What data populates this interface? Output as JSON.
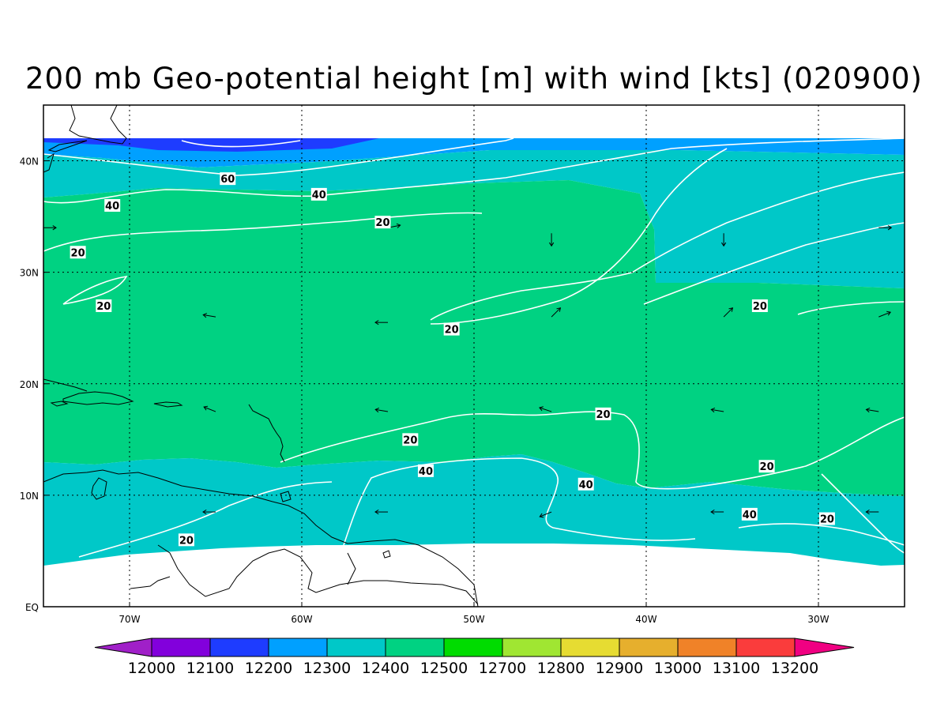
{
  "title": "200 mb Geo-potential height [m] with wind [kts] (020900)",
  "map": {
    "lon_range": [
      -75,
      -25
    ],
    "lat_range": [
      0,
      45
    ],
    "lon_ticks": [
      {
        "lon": -70,
        "label": "70W"
      },
      {
        "lon": -60,
        "label": "60W"
      },
      {
        "lon": -50,
        "label": "50W"
      },
      {
        "lon": -40,
        "label": "40W"
      },
      {
        "lon": -30,
        "label": "30W"
      }
    ],
    "lat_ticks": [
      {
        "lat": 0,
        "label": "EQ"
      },
      {
        "lat": 10,
        "label": "10N"
      },
      {
        "lat": 20,
        "label": "20N"
      },
      {
        "lat": 30,
        "label": "30N"
      },
      {
        "lat": 40,
        "label": "40N"
      }
    ],
    "grid": "dotted"
  },
  "colorbar": {
    "values": [
      "12000",
      "12100",
      "12200",
      "12300",
      "12400",
      "12500",
      "12700",
      "12800",
      "12900",
      "13000",
      "13100",
      "13200"
    ],
    "colors": [
      "#a020c8",
      "#8200dc",
      "#1e3cff",
      "#00a0ff",
      "#00c8c8",
      "#00d282",
      "#00dc00",
      "#a0e632",
      "#e6dc32",
      "#e6af2d",
      "#f08228",
      "#fa3c3c",
      "#f00082"
    ]
  },
  "wind_contour_labels": [
    {
      "text": "60",
      "lon": -64.3,
      "lat": 38.4
    },
    {
      "text": "40",
      "lon": -59.0,
      "lat": 37.0
    },
    {
      "text": "40",
      "lon": -71.0,
      "lat": 36.0
    },
    {
      "text": "20",
      "lon": -55.3,
      "lat": 34.5
    },
    {
      "text": "20",
      "lon": -73.0,
      "lat": 31.8
    },
    {
      "text": "20",
      "lon": -71.5,
      "lat": 27.0
    },
    {
      "text": "20",
      "lon": -51.3,
      "lat": 24.9
    },
    {
      "text": "20",
      "lon": -33.4,
      "lat": 27.0
    },
    {
      "text": "20",
      "lon": -42.5,
      "lat": 17.3
    },
    {
      "text": "20",
      "lon": -53.7,
      "lat": 15.0
    },
    {
      "text": "40",
      "lon": -52.8,
      "lat": 12.2
    },
    {
      "text": "40",
      "lon": -43.5,
      "lat": 11.0
    },
    {
      "text": "20",
      "lon": -33.0,
      "lat": 12.6
    },
    {
      "text": "40",
      "lon": -34.0,
      "lat": 8.3
    },
    {
      "text": "20",
      "lon": -29.5,
      "lat": 7.9
    },
    {
      "text": "20",
      "lon": -66.7,
      "lat": 6.0
    }
  ],
  "wind_vectors": [
    {
      "lon": -75.0,
      "lat": 34.0,
      "u": 5,
      "v": 0
    },
    {
      "lon": -55.0,
      "lat": 34.0,
      "u": 5,
      "v": 1
    },
    {
      "lon": -45.5,
      "lat": 33.5,
      "u": 0,
      "v": -6
    },
    {
      "lon": -35.5,
      "lat": 33.5,
      "u": 0,
      "v": -6
    },
    {
      "lon": -26.5,
      "lat": 34.0,
      "u": 5,
      "v": 0
    },
    {
      "lon": -65.0,
      "lat": 26.0,
      "u": -6,
      "v": 1
    },
    {
      "lon": -55.0,
      "lat": 25.5,
      "u": -6,
      "v": 0
    },
    {
      "lon": -45.5,
      "lat": 26.0,
      "u": 4,
      "v": 4
    },
    {
      "lon": -35.5,
      "lat": 26.0,
      "u": 4,
      "v": 4
    },
    {
      "lon": -26.5,
      "lat": 26.0,
      "u": 5,
      "v": 2
    },
    {
      "lon": -65.0,
      "lat": 17.5,
      "u": -5,
      "v": 2
    },
    {
      "lon": -55.0,
      "lat": 17.5,
      "u": -6,
      "v": 1
    },
    {
      "lon": -45.5,
      "lat": 17.5,
      "u": -6,
      "v": 2
    },
    {
      "lon": -35.5,
      "lat": 17.5,
      "u": -6,
      "v": 1
    },
    {
      "lon": -26.5,
      "lat": 17.5,
      "u": -6,
      "v": 1
    },
    {
      "lon": -65.0,
      "lat": 8.5,
      "u": -6,
      "v": 0
    },
    {
      "lon": -55.0,
      "lat": 8.5,
      "u": -6,
      "v": 0
    },
    {
      "lon": -45.5,
      "lat": 8.5,
      "u": -5,
      "v": -2
    },
    {
      "lon": -35.5,
      "lat": 8.5,
      "u": -6,
      "v": 0
    },
    {
      "lon": -26.5,
      "lat": 8.5,
      "u": -6,
      "v": 0
    }
  ]
}
